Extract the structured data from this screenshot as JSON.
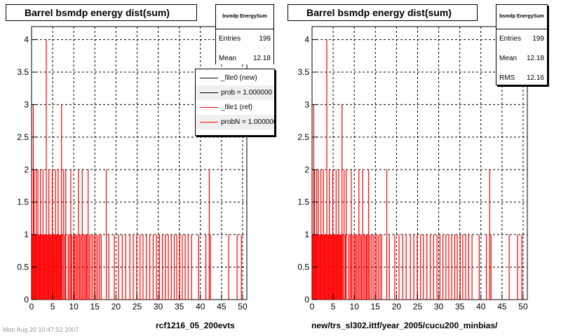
{
  "colors": {
    "hist": "#ff0000",
    "grid": "#000000",
    "new": "#000000",
    "ref": "#ff0000"
  },
  "panels": [
    {
      "title": "Barrel bsmdp energy dist(sum)",
      "caption": "rcf1216_05_200evts",
      "stats": {
        "name": "bsmdp EnergySum",
        "rows": [
          {
            "label": "Entries",
            "value": "199"
          },
          {
            "label": "Mean",
            "value": "12.18"
          }
        ]
      },
      "legend": [
        {
          "text": "_file0 (new)",
          "color": "#000000"
        },
        {
          "text": "prob = 1.000000",
          "color": "#000000"
        },
        {
          "text": "_file1 (ref)",
          "color": "#ff0000"
        },
        {
          "text": "probN = 1.000000",
          "color": "#ff0000"
        }
      ]
    },
    {
      "title": "Barrel bsmdp energy dist(sum)",
      "caption": "new/trs_sl302.ittf/year_2005/cucu200_minbias/",
      "stats": {
        "name": "bsmdp EnergySum",
        "rows": [
          {
            "label": "Entries",
            "value": "199"
          },
          {
            "label": "Mean",
            "value": "12.18"
          },
          {
            "label": "RMS",
            "value": "12.16"
          }
        ]
      }
    }
  ],
  "footer": "Mon Aug 20 10:47:52 2007",
  "chart_data": {
    "type": "bar",
    "title": "Barrel bsmdp energy dist(sum)",
    "xlim": [
      0,
      51
    ],
    "ylim": [
      0,
      4.2
    ],
    "xticks": [
      0,
      5,
      10,
      15,
      20,
      25,
      30,
      35,
      40,
      45,
      50
    ],
    "yticks": [
      0,
      0.5,
      1,
      1.5,
      2,
      2.5,
      3,
      3.5,
      4
    ],
    "ytick_labels": [
      "0",
      "0.5",
      "1",
      "1.5",
      "2",
      "2.5",
      "3",
      "3.5",
      "4"
    ],
    "grid": true,
    "bins": [
      [
        0.1,
        1
      ],
      [
        0.3,
        3
      ],
      [
        0.5,
        2
      ],
      [
        0.6,
        1
      ],
      [
        0.8,
        1
      ],
      [
        1.0,
        2
      ],
      [
        1.2,
        1
      ],
      [
        1.4,
        2
      ],
      [
        1.6,
        1
      ],
      [
        1.8,
        1
      ],
      [
        2.0,
        2
      ],
      [
        2.2,
        1
      ],
      [
        2.4,
        1
      ],
      [
        2.6,
        2
      ],
      [
        2.8,
        1
      ],
      [
        3.0,
        1
      ],
      [
        3.2,
        1
      ],
      [
        3.4,
        4
      ],
      [
        3.6,
        1
      ],
      [
        3.8,
        1
      ],
      [
        4.0,
        2
      ],
      [
        4.2,
        1
      ],
      [
        4.4,
        1
      ],
      [
        4.6,
        1
      ],
      [
        4.8,
        2
      ],
      [
        5.0,
        1
      ],
      [
        5.2,
        1
      ],
      [
        5.4,
        1
      ],
      [
        5.6,
        2
      ],
      [
        5.8,
        1
      ],
      [
        6.0,
        1
      ],
      [
        6.2,
        2
      ],
      [
        6.4,
        1
      ],
      [
        6.6,
        1
      ],
      [
        6.8,
        1
      ],
      [
        7.0,
        3
      ],
      [
        7.2,
        1
      ],
      [
        7.5,
        2
      ],
      [
        7.8,
        1
      ],
      [
        8.0,
        2
      ],
      [
        8.6,
        1
      ],
      [
        8.9,
        1
      ],
      [
        9.2,
        2
      ],
      [
        9.4,
        1
      ],
      [
        9.8,
        1
      ],
      [
        10.1,
        1
      ],
      [
        10.4,
        1
      ],
      [
        10.7,
        1
      ],
      [
        11.0,
        2
      ],
      [
        11.3,
        1
      ],
      [
        11.6,
        1
      ],
      [
        11.9,
        2
      ],
      [
        12.2,
        1
      ],
      [
        12.5,
        1
      ],
      [
        12.8,
        1
      ],
      [
        13.0,
        1
      ],
      [
        13.3,
        2
      ],
      [
        13.6,
        1
      ],
      [
        14.0,
        1
      ],
      [
        14.4,
        1
      ],
      [
        14.8,
        1
      ],
      [
        15.2,
        1
      ],
      [
        15.6,
        1
      ],
      [
        16.0,
        1
      ],
      [
        16.4,
        1
      ],
      [
        17.6,
        2
      ],
      [
        18.2,
        1
      ],
      [
        19.5,
        1
      ],
      [
        20.5,
        1
      ],
      [
        21.4,
        1
      ],
      [
        22.2,
        1
      ],
      [
        23.2,
        1
      ],
      [
        24.0,
        1
      ],
      [
        24.8,
        1
      ],
      [
        25.6,
        1
      ],
      [
        26.3,
        1
      ],
      [
        27.1,
        1
      ],
      [
        27.9,
        1
      ],
      [
        28.7,
        1
      ],
      [
        29.5,
        1
      ],
      [
        30.2,
        1
      ],
      [
        30.9,
        1
      ],
      [
        31.6,
        1
      ],
      [
        32.3,
        1
      ],
      [
        33.0,
        1
      ],
      [
        33.7,
        1
      ],
      [
        34.3,
        1
      ],
      [
        35.0,
        1
      ],
      [
        35.6,
        1
      ],
      [
        36.3,
        1
      ],
      [
        37.0,
        1
      ],
      [
        37.8,
        1
      ],
      [
        39.5,
        1
      ],
      [
        41.2,
        1
      ],
      [
        42.0,
        2
      ],
      [
        42.3,
        1
      ],
      [
        46.6,
        1
      ],
      [
        48.6,
        1
      ],
      [
        49.6,
        1
      ]
    ]
  }
}
